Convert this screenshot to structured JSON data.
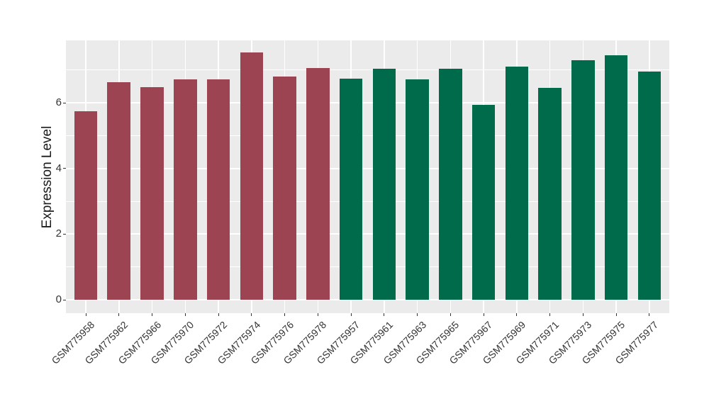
{
  "chart_data": {
    "type": "bar",
    "title": "",
    "xlabel": "",
    "ylabel": "Expression Level",
    "categories": [
      "GSM775958",
      "GSM775962",
      "GSM775966",
      "GSM775970",
      "GSM775972",
      "GSM775974",
      "GSM775976",
      "GSM775978",
      "GSM775957",
      "GSM775961",
      "GSM775963",
      "GSM775965",
      "GSM775967",
      "GSM775969",
      "GSM775971",
      "GSM775973",
      "GSM775975",
      "GSM775977"
    ],
    "values": [
      5.75,
      6.62,
      6.48,
      6.71,
      6.71,
      7.54,
      6.81,
      7.06,
      6.73,
      7.04,
      6.71,
      7.03,
      5.94,
      7.11,
      6.45,
      7.3,
      7.45,
      6.95
    ],
    "groups": [
      "group1",
      "group1",
      "group1",
      "group1",
      "group1",
      "group1",
      "group1",
      "group1",
      "group2",
      "group2",
      "group2",
      "group2",
      "group2",
      "group2",
      "group2",
      "group2",
      "group2",
      "group2"
    ],
    "group_colors": {
      "group1": "#9D4452",
      "group2": "#006B4A"
    },
    "yticks": [
      0,
      2,
      4,
      6
    ],
    "minor_yticks": [
      1,
      3,
      5,
      7
    ],
    "ylim": [
      -0.41,
      7.9
    ],
    "grid": "white major and minor gridlines on grey panel",
    "legend": "none",
    "x_tick_angle": -45,
    "colors": {
      "background": "#FFFFFF",
      "panel_background": "#EBEBEB",
      "grid_color": "#FFFFFF",
      "axis_text_color": "#333333",
      "axis_title_color": "#1A1A1A"
    }
  }
}
